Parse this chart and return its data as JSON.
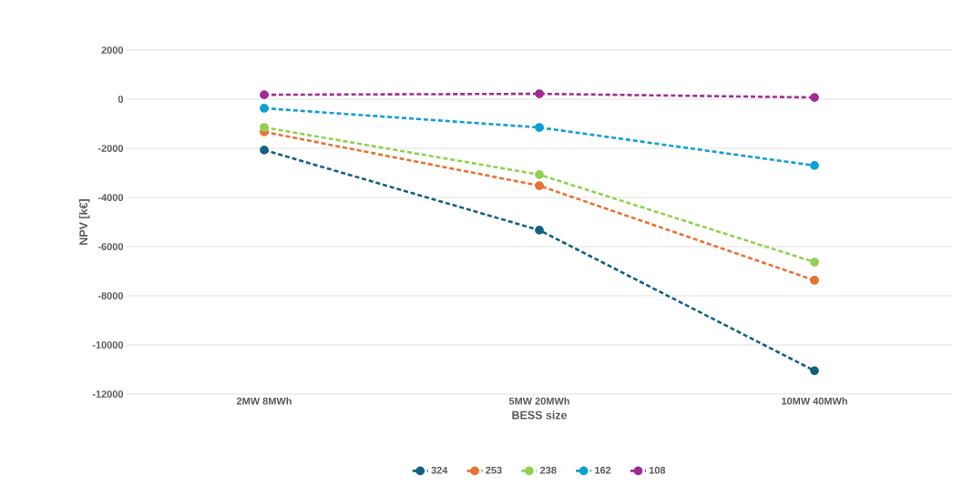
{
  "chart_data": {
    "type": "line",
    "xlabel": "BESS size",
    "ylabel": "NPV [k€]",
    "categories": [
      "2MW 8MWh",
      "5MW 20MWh",
      "10MW 40MWh"
    ],
    "series": [
      {
        "name": "324",
        "color": "#156082",
        "values": [
          -2070,
          -5330,
          -11050
        ]
      },
      {
        "name": "253",
        "color": "#e97132",
        "values": [
          -1330,
          -3520,
          -7370
        ]
      },
      {
        "name": "238",
        "color": "#92d050",
        "values": [
          -1150,
          -3070,
          -6630
        ]
      },
      {
        "name": "162",
        "color": "#0f9ed5",
        "values": [
          -370,
          -1150,
          -2700
        ]
      },
      {
        "name": "108",
        "color": "#a02b93",
        "values": [
          180,
          220,
          70
        ]
      }
    ],
    "ylim": [
      -12000,
      2000
    ],
    "yticks": [
      -12000,
      -10000,
      -8000,
      -6000,
      -4000,
      -2000,
      0,
      2000
    ],
    "grid": "y",
    "legend": "bottom",
    "marker": "circle",
    "line_style": "dashed"
  }
}
